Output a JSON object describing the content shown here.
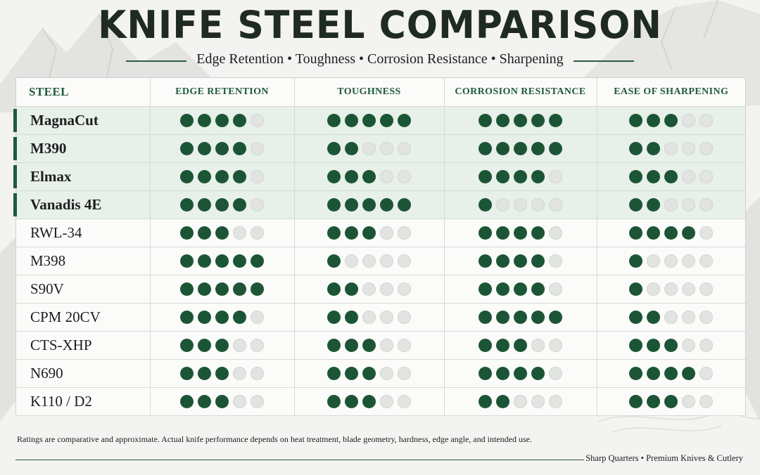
{
  "title": "KNIFE STEEL COMPARISON",
  "subtitle": "Edge Retention • Toughness • Corrosion Resistance • Sharpening",
  "colors": {
    "accent": "#1c5535",
    "featured_row": "#e8f0ea",
    "empty_dot": "#e1e4e0"
  },
  "chart_data": {
    "type": "table",
    "columns": [
      "STEEL",
      "EDGE RETENTION",
      "TOUGHNESS",
      "CORROSION RESISTANCE",
      "EASE OF SHARPENING"
    ],
    "max_rating": 5,
    "rows": [
      {
        "name": "MagnaCut",
        "featured": true,
        "ratings": [
          4,
          5,
          5,
          3
        ]
      },
      {
        "name": "M390",
        "featured": true,
        "ratings": [
          4,
          2,
          5,
          2
        ]
      },
      {
        "name": "Elmax",
        "featured": true,
        "ratings": [
          4,
          3,
          4,
          3
        ]
      },
      {
        "name": "Vanadis 4E",
        "featured": true,
        "ratings": [
          4,
          5,
          1,
          2
        ]
      },
      {
        "name": "RWL-34",
        "featured": false,
        "ratings": [
          3,
          3,
          4,
          4
        ]
      },
      {
        "name": "M398",
        "featured": false,
        "ratings": [
          5,
          1,
          4,
          1
        ]
      },
      {
        "name": "S90V",
        "featured": false,
        "ratings": [
          5,
          2,
          4,
          1
        ]
      },
      {
        "name": "CPM 20CV",
        "featured": false,
        "ratings": [
          4,
          2,
          5,
          2
        ]
      },
      {
        "name": "CTS-XHP",
        "featured": false,
        "ratings": [
          3,
          3,
          3,
          3
        ]
      },
      {
        "name": "N690",
        "featured": false,
        "ratings": [
          3,
          3,
          4,
          4
        ]
      },
      {
        "name": "K110 / D2",
        "featured": false,
        "ratings": [
          3,
          3,
          2,
          3
        ]
      }
    ]
  },
  "note": "Ratings are comparative and approximate. Actual knife performance depends on heat treatment, blade geometry, hardness, edge angle, and intended use.",
  "footer": "Sharp Quarters • Premium Knives & Cutlery"
}
